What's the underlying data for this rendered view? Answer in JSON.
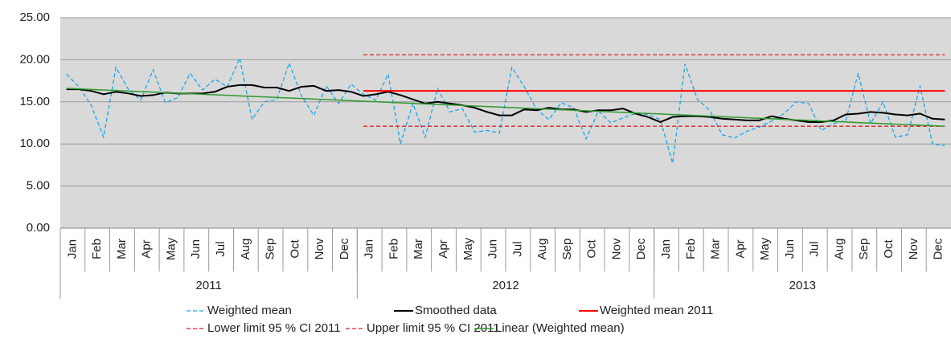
{
  "chart_data": {
    "type": "line",
    "categories": [
      "Jan",
      null,
      "Feb",
      null,
      "Mar",
      null,
      "Apr",
      null,
      "May",
      null,
      "Jun",
      null,
      "Jul",
      null,
      "Aug",
      null,
      "Sep",
      null,
      "Oct",
      null,
      "Nov",
      null,
      "Dec",
      null,
      "Jan",
      null,
      "Feb",
      null,
      "Mar",
      null,
      "Apr",
      null,
      "May",
      null,
      "Jun",
      null,
      "Jul",
      null,
      "Aug",
      null,
      "Sep",
      null,
      "Oct",
      null,
      "Nov",
      null,
      "Dec",
      null,
      "Jan",
      null,
      "Feb",
      null,
      "Mar",
      null,
      "Apr",
      null,
      "May",
      null,
      "Jun",
      null,
      "Jul",
      null,
      "Aug",
      null,
      "Sep",
      null,
      "Oct",
      null,
      "Nov",
      null,
      "Dec",
      null
    ],
    "year_labels": [
      "2011",
      "2012",
      "2013"
    ],
    "ylim": [
      0,
      25
    ],
    "yticks": [
      {
        "value": 0,
        "label": "0.00"
      },
      {
        "value": 5,
        "label": "5.00"
      },
      {
        "value": 10,
        "label": "10.00"
      },
      {
        "value": 15,
        "label": "15.00"
      },
      {
        "value": 20,
        "label": "20.00"
      },
      {
        "value": 25,
        "label": "25.00"
      }
    ],
    "grid": true,
    "series": [
      {
        "name": "Weighted mean",
        "color": "#19a7e8",
        "dashed": true,
        "values": [
          18.3,
          16.8,
          14.6,
          10.8,
          19.1,
          16.5,
          15.2,
          18.8,
          14.9,
          15.5,
          18.4,
          16.4,
          17.7,
          16.8,
          20.2,
          12.9,
          15.0,
          15.3,
          19.6,
          15.7,
          13.4,
          16.9,
          14.8,
          17.1,
          15.9,
          15.2,
          18.3,
          10.0,
          14.8,
          10.8,
          16.6,
          13.8,
          14.2,
          11.4,
          11.6,
          11.3,
          19.1,
          16.8,
          14.1,
          12.9,
          14.9,
          14.3,
          10.6,
          13.9,
          12.5,
          13.1,
          13.6,
          13.5,
          12.9,
          7.7,
          19.5,
          15.3,
          14.0,
          11.1,
          10.7,
          11.5,
          12.0,
          12.7,
          13.6,
          15.0,
          14.8,
          11.6,
          12.4,
          12.8,
          18.4,
          12.4,
          15.0,
          10.8,
          11.1,
          16.9,
          10.0,
          9.8
        ]
      },
      {
        "name": "Smoothed data",
        "color": "#000000",
        "width": 2,
        "values": [
          16.5,
          16.5,
          16.3,
          15.9,
          16.2,
          16.0,
          15.7,
          15.8,
          16.1,
          16.0,
          16.0,
          16.0,
          16.2,
          16.8,
          17.0,
          17.0,
          16.7,
          16.7,
          16.3,
          16.8,
          16.9,
          16.3,
          16.4,
          16.2,
          15.7,
          15.9,
          16.2,
          15.8,
          15.3,
          14.8,
          15.0,
          14.8,
          14.6,
          14.3,
          13.8,
          13.4,
          13.4,
          14.1,
          14.0,
          14.3,
          14.1,
          14.1,
          13.8,
          14.0,
          14.0,
          14.2,
          13.6,
          13.2,
          12.6,
          13.2,
          13.3,
          13.3,
          13.2,
          13.0,
          12.9,
          12.8,
          12.8,
          13.3,
          13.0,
          12.8,
          12.6,
          12.6,
          12.8,
          13.5,
          13.6,
          13.8,
          13.7,
          13.5,
          13.4,
          13.6,
          13.0,
          12.9
        ]
      },
      {
        "name": "Weighted mean 2011",
        "color": "#ff0000",
        "width": 2,
        "values": [
          null,
          null,
          null,
          null,
          null,
          null,
          null,
          null,
          null,
          null,
          null,
          null,
          null,
          null,
          null,
          null,
          null,
          null,
          null,
          null,
          null,
          null,
          null,
          null,
          16.3,
          16.3,
          16.3,
          16.3,
          16.3,
          16.3,
          16.3,
          16.3,
          16.3,
          16.3,
          16.3,
          16.3,
          16.3,
          16.3,
          16.3,
          16.3,
          16.3,
          16.3,
          16.3,
          16.3,
          16.3,
          16.3,
          16.3,
          16.3,
          16.3,
          16.3,
          16.3,
          16.3,
          16.3,
          16.3,
          16.3,
          16.3,
          16.3,
          16.3,
          16.3,
          16.3,
          16.3,
          16.3,
          16.3,
          16.3,
          16.3,
          16.3,
          16.3,
          16.3,
          16.3,
          16.3,
          16.3,
          16.3
        ]
      },
      {
        "name": "Lower limit 95 % CI 2011",
        "color": "#e0201f",
        "dashed": true,
        "values": [
          null,
          null,
          null,
          null,
          null,
          null,
          null,
          null,
          null,
          null,
          null,
          null,
          null,
          null,
          null,
          null,
          null,
          null,
          null,
          null,
          null,
          null,
          null,
          null,
          12.1,
          12.1,
          12.1,
          12.1,
          12.1,
          12.1,
          12.1,
          12.1,
          12.1,
          12.1,
          12.1,
          12.1,
          12.1,
          12.1,
          12.1,
          12.1,
          12.1,
          12.1,
          12.1,
          12.1,
          12.1,
          12.1,
          12.1,
          12.1,
          12.1,
          12.1,
          12.1,
          12.1,
          12.1,
          12.1,
          12.1,
          12.1,
          12.1,
          12.1,
          12.1,
          12.1,
          12.1,
          12.1,
          12.1,
          12.1,
          12.1,
          12.1,
          12.1,
          12.1,
          12.1,
          12.1,
          12.1,
          12.1
        ]
      },
      {
        "name": "Upper limit 95 % CI 2011",
        "color": "#e0201f",
        "dashed": true,
        "values": [
          null,
          null,
          null,
          null,
          null,
          null,
          null,
          null,
          null,
          null,
          null,
          null,
          null,
          null,
          null,
          null,
          null,
          null,
          null,
          null,
          null,
          null,
          null,
          null,
          20.6,
          20.6,
          20.6,
          20.6,
          20.6,
          20.6,
          20.6,
          20.6,
          20.6,
          20.6,
          20.6,
          20.6,
          20.6,
          20.6,
          20.6,
          20.6,
          20.6,
          20.6,
          20.6,
          20.6,
          20.6,
          20.6,
          20.6,
          20.6,
          20.6,
          20.6,
          20.6,
          20.6,
          20.6,
          20.6,
          20.6,
          20.6,
          20.6,
          20.6,
          20.6,
          20.6,
          20.6,
          20.6,
          20.6,
          20.6,
          20.6,
          20.6,
          20.6,
          20.6,
          20.6,
          20.6,
          20.6,
          20.6
        ]
      },
      {
        "name": "Linear (Weighted mean)",
        "color": "#2e9a2e",
        "width": 1.5,
        "values": [
          16.6,
          16.54,
          16.47,
          16.41,
          16.35,
          16.28,
          16.22,
          16.16,
          16.09,
          16.03,
          15.97,
          15.9,
          15.84,
          15.78,
          15.71,
          15.65,
          15.59,
          15.52,
          15.46,
          15.4,
          15.33,
          15.27,
          15.21,
          15.14,
          15.08,
          15.02,
          14.95,
          14.89,
          14.82,
          14.76,
          14.7,
          14.63,
          14.57,
          14.51,
          14.44,
          14.38,
          14.32,
          14.25,
          14.19,
          14.13,
          14.06,
          14.0,
          13.94,
          13.87,
          13.81,
          13.75,
          13.68,
          13.62,
          13.56,
          13.49,
          13.43,
          13.37,
          13.3,
          13.24,
          13.18,
          13.11,
          13.05,
          12.99,
          12.92,
          12.86,
          12.8,
          12.73,
          12.67,
          12.61,
          12.54,
          12.48,
          12.42,
          12.35,
          12.29,
          12.23,
          12.16,
          12.1
        ]
      }
    ]
  }
}
